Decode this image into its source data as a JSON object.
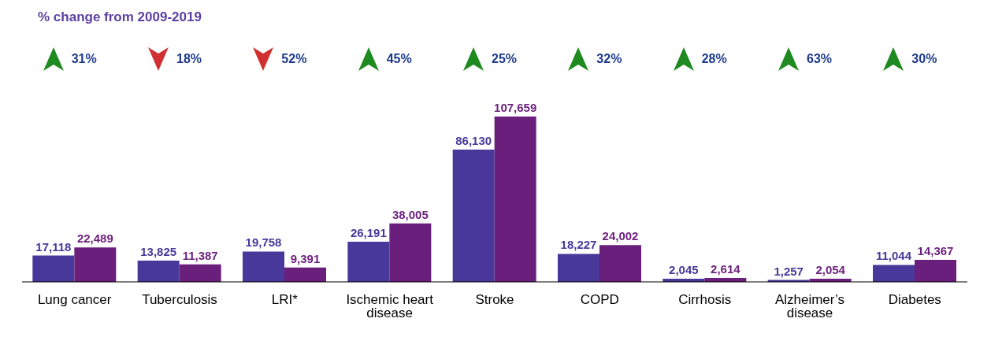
{
  "chart_data": {
    "type": "bar",
    "title": "% change from 2009-2019",
    "categories": [
      "Lung cancer",
      "Tuberculosis",
      "LRI*",
      "Ischemic heart disease",
      "Stroke",
      "COPD",
      "Cirrhosis",
      "Alzheimer’s disease",
      "Diabetes"
    ],
    "series": [
      {
        "color": "#47389a",
        "values": [
          17118,
          13825,
          19758,
          26191,
          86130,
          18227,
          2045,
          1257,
          11044
        ],
        "value_labels": [
          "17,118",
          "13,825",
          "19,758",
          "26,191",
          "86,130",
          "18,227",
          "2,045",
          "1,257",
          "11,044"
        ]
      },
      {
        "color": "#6b1f7c",
        "values": [
          22489,
          11387,
          9391,
          38005,
          107659,
          24002,
          2614,
          2054,
          14367
        ],
        "value_labels": [
          "22,489",
          "11,387",
          "9,391",
          "38,005",
          "107,659",
          "24,002",
          "2,614",
          "2,054",
          "14,367"
        ]
      }
    ],
    "annotations": [
      "31%",
      "18%",
      "52%",
      "45%",
      "25%",
      "32%",
      "28%",
      "63%",
      "30%"
    ]
  }
}
